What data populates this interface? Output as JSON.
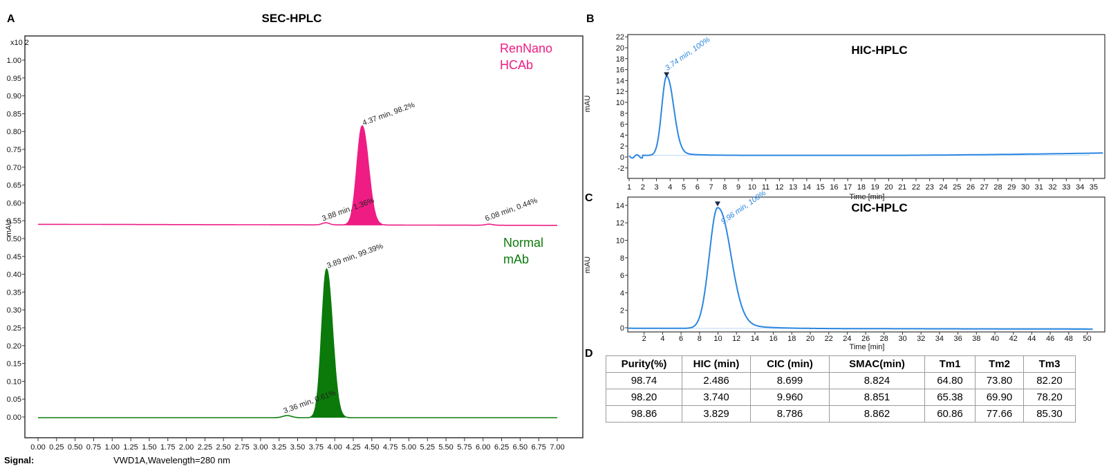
{
  "panels": {
    "a": "A",
    "b": "B",
    "c": "C",
    "d": "D"
  },
  "chart_data": [
    {
      "type": "line",
      "title": "SEC-HPLC",
      "ylabel": "mAU",
      "y_multiplier": "x10 2",
      "xlim": [
        0,
        7
      ],
      "ylim": [
        -0.02,
        1.02
      ],
      "x_ticks": [
        "0.00",
        "0.25",
        "0.50",
        "0.75",
        "1.00",
        "1.25",
        "1.50",
        "1.75",
        "2.00",
        "2.25",
        "2.50",
        "2.75",
        "3.00",
        "3.25",
        "3.50",
        "3.75",
        "4.00",
        "4.25",
        "4.50",
        "4.75",
        "5.00",
        "5.25",
        "5.50",
        "5.75",
        "6.00",
        "6.25",
        "6.50",
        "6.75",
        "7.00"
      ],
      "y_ticks": [
        "0.00",
        "0.05",
        "0.10",
        "0.15",
        "0.20",
        "0.25",
        "0.30",
        "0.35",
        "0.40",
        "0.45",
        "0.50",
        "0.55",
        "0.60",
        "0.65",
        "0.70",
        "0.75",
        "0.80",
        "0.85",
        "0.90",
        "0.95",
        "1.00"
      ],
      "footer_label": "Signal:",
      "footer_value": "VWD1A,Wavelength=280 nm",
      "series": [
        {
          "name": "RenNano HCAb",
          "legend": [
            "RenNano",
            "HCAb"
          ],
          "color": "#ee1c83",
          "baseline": 0.537,
          "peaks": [
            {
              "rt": 3.88,
              "height": 0.006,
              "label": "3.88 min, 1.36%"
            },
            {
              "rt": 4.37,
              "height": 0.815,
              "label": "4.37 min, 98.2%"
            },
            {
              "rt": 6.08,
              "height": 0.003,
              "label": "6.08 min, 0.44%"
            }
          ]
        },
        {
          "name": "Normal mAb",
          "legend": [
            "Normal",
            "mAb"
          ],
          "color": "#0b7a0b",
          "baseline": -0.002,
          "peaks": [
            {
              "rt": 3.36,
              "height": 0.006,
              "label": "3.36 min, 0.61%"
            },
            {
              "rt": 3.89,
              "height": 0.415,
              "label": "3.89 min, 99.39%"
            }
          ]
        }
      ]
    },
    {
      "type": "line",
      "title": "HIC-HPLC",
      "xlabel": "Time [min]",
      "ylabel": "mAU",
      "xlim": [
        1,
        35.7
      ],
      "ylim": [
        -3,
        22.5
      ],
      "x_ticks": [
        1,
        2,
        3,
        4,
        5,
        6,
        7,
        8,
        9,
        10,
        11,
        12,
        13,
        14,
        15,
        16,
        17,
        18,
        19,
        20,
        21,
        22,
        23,
        24,
        25,
        26,
        27,
        28,
        29,
        30,
        31,
        32,
        33,
        34,
        35
      ],
      "y_ticks": [
        -2,
        0,
        2,
        4,
        6,
        8,
        10,
        12,
        14,
        16,
        18,
        20,
        22
      ],
      "color": "#2b86e0",
      "peaks": [
        {
          "rt": 3.74,
          "height": 14.5,
          "label": "3.74 min, 100%"
        }
      ]
    },
    {
      "type": "line",
      "title": "CIC-HPLC",
      "xlabel": "Time [min]",
      "ylabel": "mAU",
      "xlim": [
        0,
        51
      ],
      "ylim": [
        -0.5,
        14.9
      ],
      "x_ticks": [
        2,
        4,
        6,
        8,
        10,
        12,
        14,
        16,
        18,
        20,
        22,
        24,
        26,
        28,
        30,
        32,
        34,
        36,
        38,
        40,
        42,
        44,
        46,
        48,
        50
      ],
      "y_ticks": [
        0,
        2,
        4,
        6,
        8,
        10,
        12,
        14
      ],
      "color": "#2b86e0",
      "peaks": [
        {
          "rt": 9.96,
          "height": 13.8,
          "label": "9.96 min, 100%"
        }
      ]
    },
    {
      "type": "table",
      "columns": [
        "Purity(%)",
        "HIC (min)",
        "CIC (min)",
        "SMAC(min)",
        "Tm1",
        "Tm2",
        "Tm3"
      ],
      "rows": [
        [
          "98.74",
          "2.486",
          "8.699",
          "8.824",
          "64.80",
          "73.80",
          "82.20"
        ],
        [
          "98.20",
          "3.740",
          "9.960",
          "8.851",
          "65.38",
          "69.90",
          "78.20"
        ],
        [
          "98.86",
          "3.829",
          "8.786",
          "8.862",
          "60.86",
          "77.66",
          "85.30"
        ]
      ]
    }
  ]
}
